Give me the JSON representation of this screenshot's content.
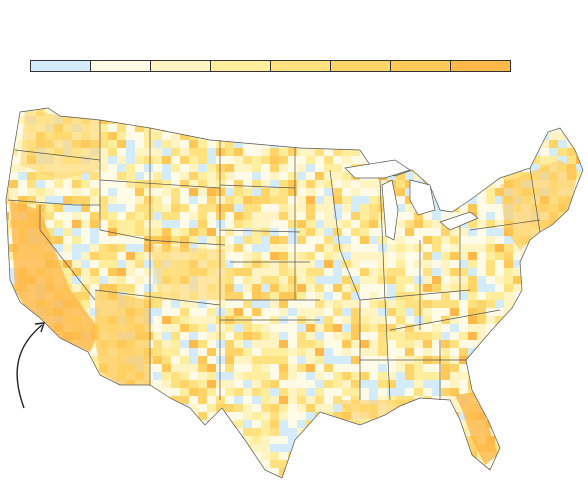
{
  "legend": {
    "colors": [
      "#d4ecfa",
      "#fffbe6",
      "#fff4c2",
      "#ffee9e",
      "#ffe27f",
      "#ffd56a",
      "#ffc957",
      "#ffb84a"
    ]
  },
  "map": {
    "region": "contiguous-united-states",
    "feature": "county-choropleth",
    "annotation": "curved-arrow-pointing-to-southern-california",
    "base_color": "#ffffff",
    "border_color": "#555555"
  }
}
